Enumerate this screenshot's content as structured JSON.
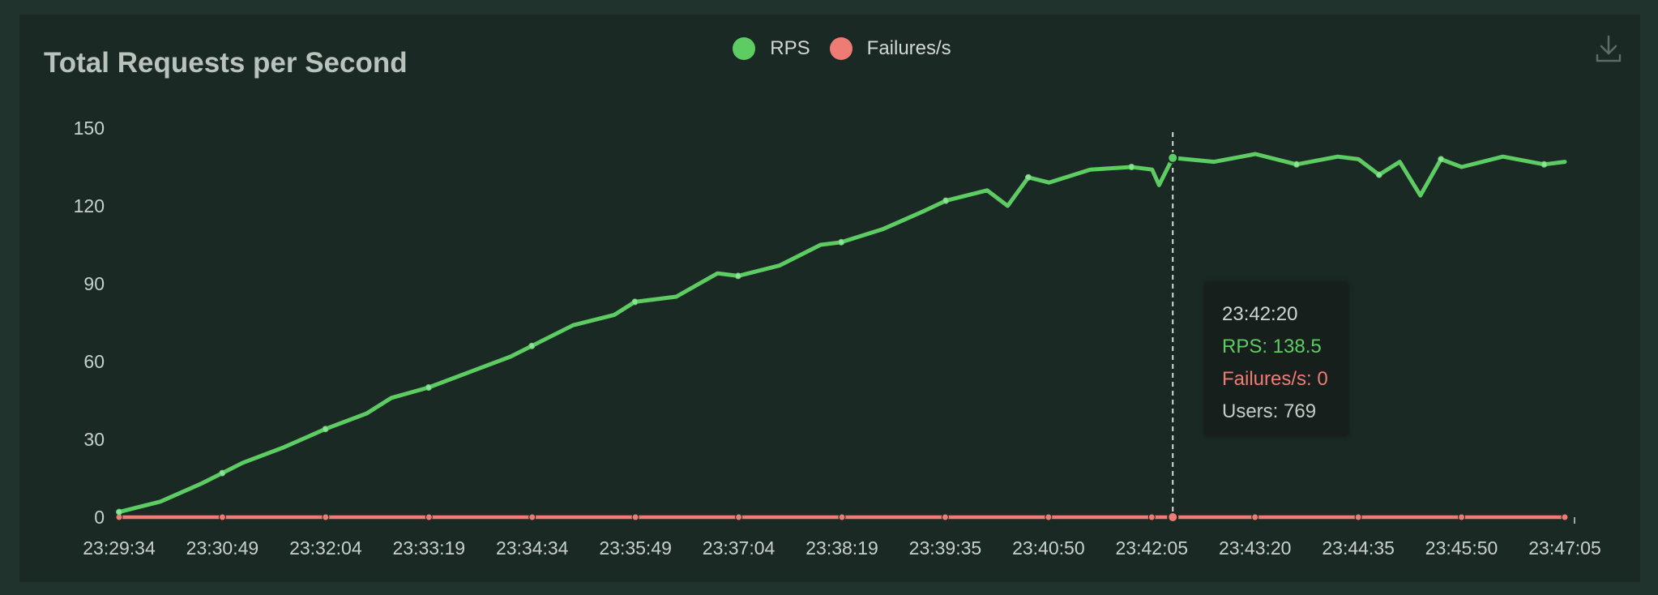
{
  "chart_data": {
    "type": "line",
    "title": "Total Requests per Second",
    "xlabel": "",
    "ylabel": "",
    "ylim": [
      0,
      150
    ],
    "yticks": [
      0,
      30,
      60,
      90,
      120,
      150
    ],
    "x_tick_labels": [
      "23:29:34",
      "23:30:49",
      "23:32:04",
      "23:33:19",
      "23:34:34",
      "23:35:49",
      "23:37:04",
      "23:38:19",
      "23:39:35",
      "23:40:50",
      "23:42:05",
      "23:43:20",
      "23:44:35",
      "23:45:50",
      "23:47:05"
    ],
    "x_range": [
      "23:29:34",
      "23:47:05"
    ],
    "legend_position": "top-center",
    "grid": false,
    "series": [
      {
        "name": "RPS",
        "color": "#5dcc63",
        "points": [
          [
            "23:29:34",
            2
          ],
          [
            "23:30:04",
            6
          ],
          [
            "23:30:34",
            13
          ],
          [
            "23:30:49",
            17
          ],
          [
            "23:31:04",
            21
          ],
          [
            "23:31:34",
            27
          ],
          [
            "23:32:04",
            34
          ],
          [
            "23:32:34",
            40
          ],
          [
            "23:32:52",
            46
          ],
          [
            "23:33:19",
            50
          ],
          [
            "23:33:49",
            56
          ],
          [
            "23:34:19",
            62
          ],
          [
            "23:34:34",
            66
          ],
          [
            "23:35:04",
            74
          ],
          [
            "23:35:34",
            78
          ],
          [
            "23:35:49",
            83
          ],
          [
            "23:36:19",
            85
          ],
          [
            "23:36:49",
            94
          ],
          [
            "23:37:04",
            93
          ],
          [
            "23:37:34",
            97
          ],
          [
            "23:38:04",
            105
          ],
          [
            "23:38:19",
            106
          ],
          [
            "23:38:49",
            111
          ],
          [
            "23:39:19",
            118
          ],
          [
            "23:39:35",
            122
          ],
          [
            "23:40:05",
            126
          ],
          [
            "23:40:20",
            120
          ],
          [
            "23:40:35",
            131
          ],
          [
            "23:40:50",
            129
          ],
          [
            "23:41:20",
            134
          ],
          [
            "23:41:50",
            135
          ],
          [
            "23:42:05",
            134
          ],
          [
            "23:42:10",
            128
          ],
          [
            "23:42:20",
            138.5
          ],
          [
            "23:42:50",
            137
          ],
          [
            "23:43:20",
            140
          ],
          [
            "23:43:50",
            136
          ],
          [
            "23:44:20",
            139
          ],
          [
            "23:44:35",
            138
          ],
          [
            "23:44:50",
            132
          ],
          [
            "23:45:05",
            137
          ],
          [
            "23:45:20",
            124
          ],
          [
            "23:45:35",
            138
          ],
          [
            "23:45:50",
            135
          ],
          [
            "23:46:20",
            139
          ],
          [
            "23:46:50",
            136
          ],
          [
            "23:47:05",
            137
          ]
        ]
      },
      {
        "name": "Failures/s",
        "color": "#ef7b75",
        "points": [
          [
            "23:29:34",
            0
          ],
          [
            "23:47:05",
            0
          ]
        ]
      }
    ]
  },
  "legend": {
    "rps_label": "RPS",
    "failures_label": "Failures/s"
  },
  "tooltip": {
    "time": "23:42:20",
    "rps": "RPS: 138.5",
    "failures": "Failures/s: 0",
    "users": "Users: 769"
  },
  "tooltip_x": "23:42:20",
  "icons": {
    "download": "download-icon"
  }
}
